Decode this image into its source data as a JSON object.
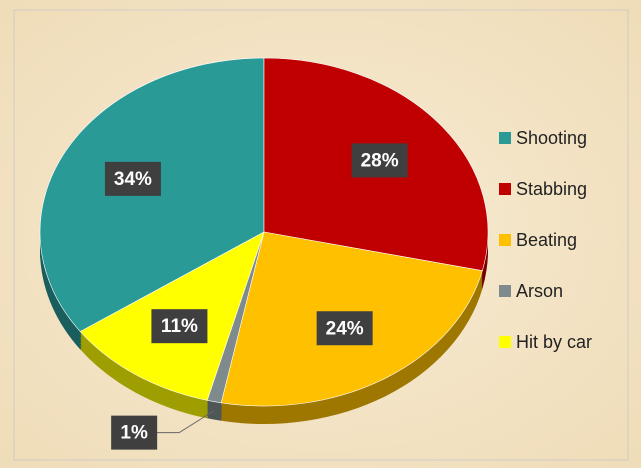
{
  "chart_data": {
    "type": "pie",
    "categories": [
      "Shooting",
      "Stabbing",
      "Beating",
      "Arson",
      "Hit by car"
    ],
    "values": [
      34,
      28,
      24,
      1,
      11
    ],
    "value_labels": [
      "34%",
      "28%",
      "24%",
      "1%",
      "11%"
    ],
    "colors": [
      "#2a9a97",
      "#c00000",
      "#ffc000",
      "#7e8a8c",
      "#ffff00"
    ],
    "legend": "right"
  }
}
